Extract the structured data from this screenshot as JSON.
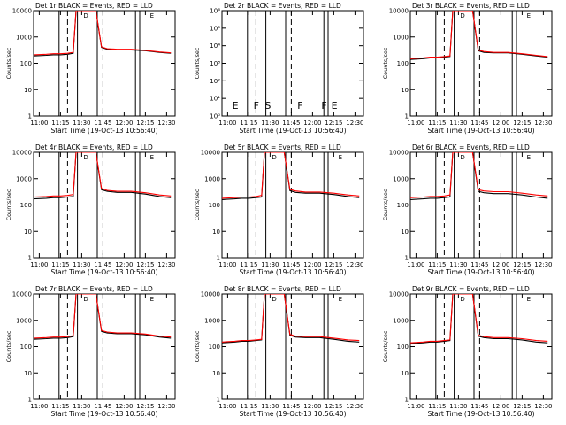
{
  "chart_data": [
    {
      "type": "line",
      "title": "Det 1r BLACK = Events, RED = LLD",
      "xlabel": "Start Time (19-Oct-13 10:56:40)",
      "ylabel": "Counts/sec",
      "x_ticks": [
        "11:00",
        "11:15",
        "11:30",
        "11:45",
        "12:00",
        "12:15",
        "12:30"
      ],
      "y_scale": "log",
      "ylim": [
        1,
        10000
      ],
      "y_ticks": [
        "1",
        "10",
        "100",
        "1000",
        "10000"
      ],
      "annotations": [
        {
          "text": "D",
          "x": "11:30"
        },
        {
          "text": "E",
          "x": "12:17"
        }
      ],
      "series": [
        {
          "name": "Events",
          "color": "#000000",
          "x": [
            "10:56",
            "11:05",
            "11:10",
            "11:15",
            "11:20",
            "11:24",
            "11:26",
            "11:35",
            "11:40",
            "11:44",
            "11:48",
            "11:55",
            "12:05",
            "12:15",
            "12:25",
            "12:33"
          ],
          "y": [
            190,
            200,
            210,
            210,
            220,
            240,
            10000,
            10000,
            10000,
            400,
            340,
            320,
            320,
            300,
            260,
            240
          ]
        },
        {
          "name": "LLD",
          "color": "#ff0000",
          "x": [
            "10:56",
            "11:05",
            "11:10",
            "11:15",
            "11:20",
            "11:24",
            "11:26",
            "11:35",
            "11:40",
            "11:44",
            "11:48",
            "11:55",
            "12:05",
            "12:15",
            "12:25",
            "12:33"
          ],
          "y": [
            210,
            220,
            230,
            230,
            240,
            260,
            10000,
            10000,
            10000,
            420,
            360,
            340,
            340,
            310,
            270,
            250
          ]
        }
      ]
    },
    {
      "type": "line",
      "title": "Det 2r BLACK = Events, RED = LLD",
      "xlabel": "Start Time (19-Oct-13 10:56:40)",
      "ylabel": "Counts/sec",
      "x_ticks": [
        "11:00",
        "11:15",
        "11:30",
        "11:45",
        "12:00",
        "12:15",
        "12:30"
      ],
      "y_scale": "log",
      "ylim": [
        1,
        1000000
      ],
      "y_ticks": [
        "10⁰",
        "10¹",
        "10²",
        "10³",
        "10⁴",
        "10⁵",
        "10⁶"
      ],
      "annotations": [
        {
          "text": "E",
          "x": "11:02"
        },
        {
          "text": "F",
          "x": "11:17"
        },
        {
          "text": "S",
          "x": "11:25"
        },
        {
          "text": "F",
          "x": "11:48"
        },
        {
          "text": "F",
          "x": "12:05"
        },
        {
          "text": "E",
          "x": "12:12"
        }
      ],
      "series": []
    },
    {
      "type": "line",
      "title": "Det 3r BLACK = Events, RED = LLD",
      "xlabel": "Start Time (19-Oct-13 10:56:40)",
      "ylabel": "Counts/sec",
      "x_ticks": [
        "11:00",
        "11:15",
        "11:30",
        "11:45",
        "12:00",
        "12:15",
        "12:30"
      ],
      "y_scale": "log",
      "ylim": [
        1,
        10000
      ],
      "y_ticks": [
        "1",
        "10",
        "100",
        "1000",
        "10000"
      ],
      "annotations": [
        {
          "text": "D",
          "x": "11:30"
        },
        {
          "text": "E",
          "x": "12:17"
        }
      ],
      "series": [
        {
          "name": "Events",
          "color": "#000000",
          "x": [
            "10:56",
            "11:05",
            "11:10",
            "11:15",
            "11:20",
            "11:24",
            "11:26",
            "11:35",
            "11:40",
            "11:44",
            "11:48",
            "11:55",
            "12:05",
            "12:15",
            "12:25",
            "12:33"
          ],
          "y": [
            140,
            150,
            160,
            160,
            170,
            180,
            10000,
            10000,
            10000,
            300,
            260,
            250,
            250,
            220,
            190,
            170
          ]
        },
        {
          "name": "LLD",
          "color": "#ff0000",
          "x": [
            "10:56",
            "11:05",
            "11:10",
            "11:15",
            "11:20",
            "11:24",
            "11:26",
            "11:35",
            "11:40",
            "11:44",
            "11:48",
            "11:55",
            "12:05",
            "12:15",
            "12:25",
            "12:33"
          ],
          "y": [
            150,
            160,
            170,
            170,
            180,
            190,
            10000,
            10000,
            10000,
            320,
            280,
            260,
            260,
            230,
            200,
            180
          ]
        }
      ]
    },
    {
      "type": "line",
      "title": "Det 4r BLACK = Events, RED = LLD",
      "xlabel": "Start Time (19-Oct-13 10:56:40)",
      "ylabel": "Counts/sec",
      "x_ticks": [
        "11:00",
        "11:15",
        "11:30",
        "11:45",
        "12:00",
        "12:15",
        "12:30"
      ],
      "y_scale": "log",
      "ylim": [
        1,
        10000
      ],
      "y_ticks": [
        "1",
        "10",
        "100",
        "1000",
        "10000"
      ],
      "annotations": [
        {
          "text": "D",
          "x": "11:30"
        },
        {
          "text": "E",
          "x": "12:17"
        }
      ],
      "series": [
        {
          "name": "Events",
          "color": "#000000",
          "x": [
            "10:56",
            "11:05",
            "11:10",
            "11:15",
            "11:20",
            "11:24",
            "11:26",
            "11:35",
            "11:40",
            "11:44",
            "11:48",
            "11:55",
            "12:05",
            "12:15",
            "12:25",
            "12:33"
          ],
          "y": [
            170,
            180,
            190,
            190,
            200,
            210,
            10000,
            10000,
            10000,
            380,
            330,
            300,
            300,
            260,
            210,
            190
          ]
        },
        {
          "name": "LLD",
          "color": "#ff0000",
          "x": [
            "10:56",
            "11:05",
            "11:10",
            "11:15",
            "11:20",
            "11:24",
            "11:26",
            "11:35",
            "11:40",
            "11:44",
            "11:48",
            "11:55",
            "12:05",
            "12:15",
            "12:25",
            "12:33"
          ],
          "y": [
            200,
            210,
            220,
            220,
            230,
            250,
            10000,
            10000,
            10000,
            420,
            360,
            330,
            330,
            290,
            240,
            220
          ]
        }
      ]
    },
    {
      "type": "line",
      "title": "Det 5r BLACK = Events, RED = LLD",
      "xlabel": "Start Time (19-Oct-13 10:56:40)",
      "ylabel": "Counts/sec",
      "x_ticks": [
        "11:00",
        "11:15",
        "11:30",
        "11:45",
        "12:00",
        "12:15",
        "12:30"
      ],
      "y_scale": "log",
      "ylim": [
        1,
        10000
      ],
      "y_ticks": [
        "1",
        "10",
        "100",
        "1000",
        "10000"
      ],
      "annotations": [
        {
          "text": "D",
          "x": "11:30"
        },
        {
          "text": "E",
          "x": "12:17"
        }
      ],
      "series": [
        {
          "name": "Events",
          "color": "#000000",
          "x": [
            "10:56",
            "11:05",
            "11:10",
            "11:15",
            "11:20",
            "11:24",
            "11:26",
            "11:35",
            "11:40",
            "11:44",
            "11:48",
            "11:55",
            "12:05",
            "12:15",
            "12:25",
            "12:33"
          ],
          "y": [
            160,
            170,
            180,
            180,
            190,
            200,
            10000,
            10000,
            10000,
            350,
            300,
            280,
            280,
            250,
            210,
            190
          ]
        },
        {
          "name": "LLD",
          "color": "#ff0000",
          "x": [
            "10:56",
            "11:05",
            "11:10",
            "11:15",
            "11:20",
            "11:24",
            "11:26",
            "11:35",
            "11:40",
            "11:44",
            "11:48",
            "11:55",
            "12:05",
            "12:15",
            "12:25",
            "12:33"
          ],
          "y": [
            180,
            190,
            200,
            200,
            210,
            230,
            10000,
            10000,
            10000,
            390,
            340,
            310,
            310,
            280,
            240,
            220
          ]
        }
      ]
    },
    {
      "type": "line",
      "title": "Det 6r BLACK = Events, RED = LLD",
      "xlabel": "Start Time (19-Oct-13 10:56:40)",
      "ylabel": "Counts/sec",
      "x_ticks": [
        "11:00",
        "11:15",
        "11:30",
        "11:45",
        "12:00",
        "12:15",
        "12:30"
      ],
      "y_scale": "log",
      "ylim": [
        1,
        10000
      ],
      "y_ticks": [
        "1",
        "10",
        "100",
        "1000",
        "10000"
      ],
      "annotations": [
        {
          "text": "D",
          "x": "11:30"
        },
        {
          "text": "E",
          "x": "12:17"
        }
      ],
      "series": [
        {
          "name": "Events",
          "color": "#000000",
          "x": [
            "10:56",
            "11:05",
            "11:10",
            "11:15",
            "11:20",
            "11:24",
            "11:26",
            "11:35",
            "11:40",
            "11:44",
            "11:48",
            "11:55",
            "12:05",
            "12:15",
            "12:25",
            "12:33"
          ],
          "y": [
            160,
            170,
            180,
            180,
            190,
            200,
            10000,
            10000,
            10000,
            330,
            290,
            270,
            270,
            240,
            200,
            180
          ]
        },
        {
          "name": "LLD",
          "color": "#ff0000",
          "x": [
            "10:56",
            "11:05",
            "11:10",
            "11:15",
            "11:20",
            "11:24",
            "11:26",
            "11:35",
            "11:40",
            "11:44",
            "11:48",
            "11:55",
            "12:05",
            "12:15",
            "12:25",
            "12:33"
          ],
          "y": [
            190,
            200,
            210,
            210,
            220,
            240,
            10000,
            10000,
            10000,
            380,
            340,
            320,
            320,
            280,
            240,
            220
          ]
        }
      ]
    },
    {
      "type": "line",
      "title": "Det 7r BLACK = Events, RED = LLD",
      "xlabel": "Start Time (19-Oct-13 10:56:40)",
      "ylabel": "Counts/sec",
      "x_ticks": [
        "11:00",
        "11:15",
        "11:30",
        "11:45",
        "12:00",
        "12:15",
        "12:30"
      ],
      "y_scale": "log",
      "ylim": [
        1,
        10000
      ],
      "y_ticks": [
        "1",
        "10",
        "100",
        "1000",
        "10000"
      ],
      "annotations": [
        {
          "text": "D",
          "x": "11:30"
        },
        {
          "text": "E",
          "x": "12:17"
        }
      ],
      "series": [
        {
          "name": "Events",
          "color": "#000000",
          "x": [
            "10:56",
            "11:05",
            "11:10",
            "11:15",
            "11:20",
            "11:24",
            "11:26",
            "11:35",
            "11:40",
            "11:44",
            "11:48",
            "11:55",
            "12:05",
            "12:15",
            "12:25",
            "12:33"
          ],
          "y": [
            190,
            200,
            210,
            210,
            220,
            240,
            10000,
            10000,
            10000,
            380,
            330,
            310,
            310,
            280,
            230,
            210
          ]
        },
        {
          "name": "LLD",
          "color": "#ff0000",
          "x": [
            "10:56",
            "11:05",
            "11:10",
            "11:15",
            "11:20",
            "11:24",
            "11:26",
            "11:35",
            "11:40",
            "11:44",
            "11:48",
            "11:55",
            "12:05",
            "12:15",
            "12:25",
            "12:33"
          ],
          "y": [
            210,
            220,
            230,
            230,
            240,
            260,
            10000,
            10000,
            10000,
            410,
            360,
            330,
            330,
            300,
            250,
            230
          ]
        }
      ]
    },
    {
      "type": "line",
      "title": "Det 8r BLACK = Events, RED = LLD",
      "xlabel": "Start Time (19-Oct-13 10:56:40)",
      "ylabel": "Counts/sec",
      "x_ticks": [
        "11:00",
        "11:15",
        "11:30",
        "11:45",
        "12:00",
        "12:15",
        "12:30"
      ],
      "y_scale": "log",
      "ylim": [
        1,
        10000
      ],
      "y_ticks": [
        "1",
        "10",
        "100",
        "1000",
        "10000"
      ],
      "annotations": [
        {
          "text": "D",
          "x": "11:30"
        },
        {
          "text": "E",
          "x": "12:17"
        }
      ],
      "series": [
        {
          "name": "Events",
          "color": "#000000",
          "x": [
            "10:56",
            "11:05",
            "11:10",
            "11:15",
            "11:20",
            "11:24",
            "11:26",
            "11:35",
            "11:40",
            "11:44",
            "11:48",
            "11:55",
            "12:05",
            "12:15",
            "12:25",
            "12:33"
          ],
          "y": [
            140,
            150,
            160,
            160,
            170,
            180,
            10000,
            10000,
            10000,
            270,
            230,
            220,
            220,
            190,
            160,
            150
          ]
        },
        {
          "name": "LLD",
          "color": "#ff0000",
          "x": [
            "10:56",
            "11:05",
            "11:10",
            "11:15",
            "11:20",
            "11:24",
            "11:26",
            "11:35",
            "11:40",
            "11:44",
            "11:48",
            "11:55",
            "12:05",
            "12:15",
            "12:25",
            "12:33"
          ],
          "y": [
            150,
            160,
            170,
            170,
            180,
            190,
            10000,
            10000,
            10000,
            290,
            250,
            240,
            240,
            210,
            180,
            170
          ]
        }
      ]
    },
    {
      "type": "line",
      "title": "Det 9r BLACK = Events, RED = LLD",
      "xlabel": "Start Time (19-Oct-13 10:56:40)",
      "ylabel": "Counts/sec",
      "x_ticks": [
        "11:00",
        "11:15",
        "11:30",
        "11:45",
        "12:00",
        "12:15",
        "12:30"
      ],
      "y_scale": "log",
      "ylim": [
        1,
        10000
      ],
      "y_ticks": [
        "1",
        "10",
        "100",
        "1000",
        "10000"
      ],
      "annotations": [
        {
          "text": "D",
          "x": "11:30"
        },
        {
          "text": "E",
          "x": "12:17"
        }
      ],
      "series": [
        {
          "name": "Events",
          "color": "#000000",
          "x": [
            "10:56",
            "11:05",
            "11:10",
            "11:15",
            "11:20",
            "11:24",
            "11:26",
            "11:35",
            "11:40",
            "11:44",
            "11:48",
            "11:55",
            "12:05",
            "12:15",
            "12:25",
            "12:33"
          ],
          "y": [
            130,
            140,
            150,
            150,
            160,
            170,
            10000,
            10000,
            10000,
            250,
            220,
            200,
            200,
            180,
            150,
            140
          ]
        },
        {
          "name": "LLD",
          "color": "#ff0000",
          "x": [
            "10:56",
            "11:05",
            "11:10",
            "11:15",
            "11:20",
            "11:24",
            "11:26",
            "11:35",
            "11:40",
            "11:44",
            "11:48",
            "11:55",
            "12:05",
            "12:15",
            "12:25",
            "12:33"
          ],
          "y": [
            140,
            150,
            160,
            160,
            170,
            180,
            10000,
            10000,
            10000,
            270,
            240,
            220,
            220,
            200,
            170,
            160
          ]
        }
      ]
    }
  ]
}
